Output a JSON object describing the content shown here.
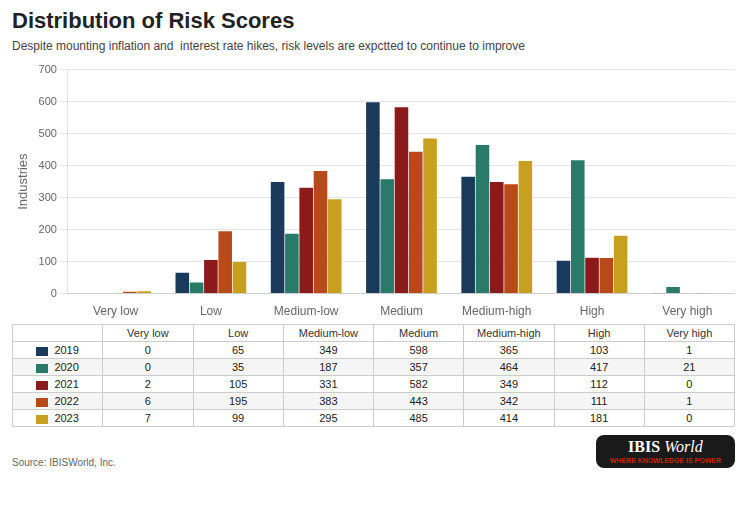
{
  "chart_data": {
    "type": "bar",
    "title": "Distribution of Risk Scores",
    "subtitle": "Despite mounting inflation and  interest rate hikes, risk levels are expctted to continue to improve",
    "ylabel": "Industries",
    "categories": [
      "Very low",
      "Low",
      "Medium-low",
      "Medium",
      "Medium-high",
      "High",
      "Very high"
    ],
    "series": [
      {
        "name": "2019",
        "color": "#1a3a5c",
        "values": [
          0,
          65,
          349,
          598,
          365,
          103,
          1
        ]
      },
      {
        "name": "2020",
        "color": "#2a7a6a",
        "values": [
          0,
          35,
          187,
          357,
          464,
          417,
          21
        ]
      },
      {
        "name": "2021",
        "color": "#8b1a1a",
        "values": [
          2,
          105,
          331,
          582,
          349,
          112,
          0
        ]
      },
      {
        "name": "2022",
        "color": "#b84a1a",
        "values": [
          6,
          195,
          383,
          443,
          342,
          111,
          1
        ]
      },
      {
        "name": "2023",
        "color": "#c8a020",
        "values": [
          7,
          99,
          295,
          485,
          414,
          181,
          0
        ]
      }
    ],
    "ylim": [
      0,
      700
    ],
    "yticks": [
      0,
      100,
      200,
      300,
      400,
      500,
      600,
      700
    ],
    "grid": true,
    "source": "Source: IBISWorld, Inc.",
    "annotations": [
      "IBIS",
      "World",
      "WHERE KNOWLEDGE IS POWER"
    ]
  }
}
